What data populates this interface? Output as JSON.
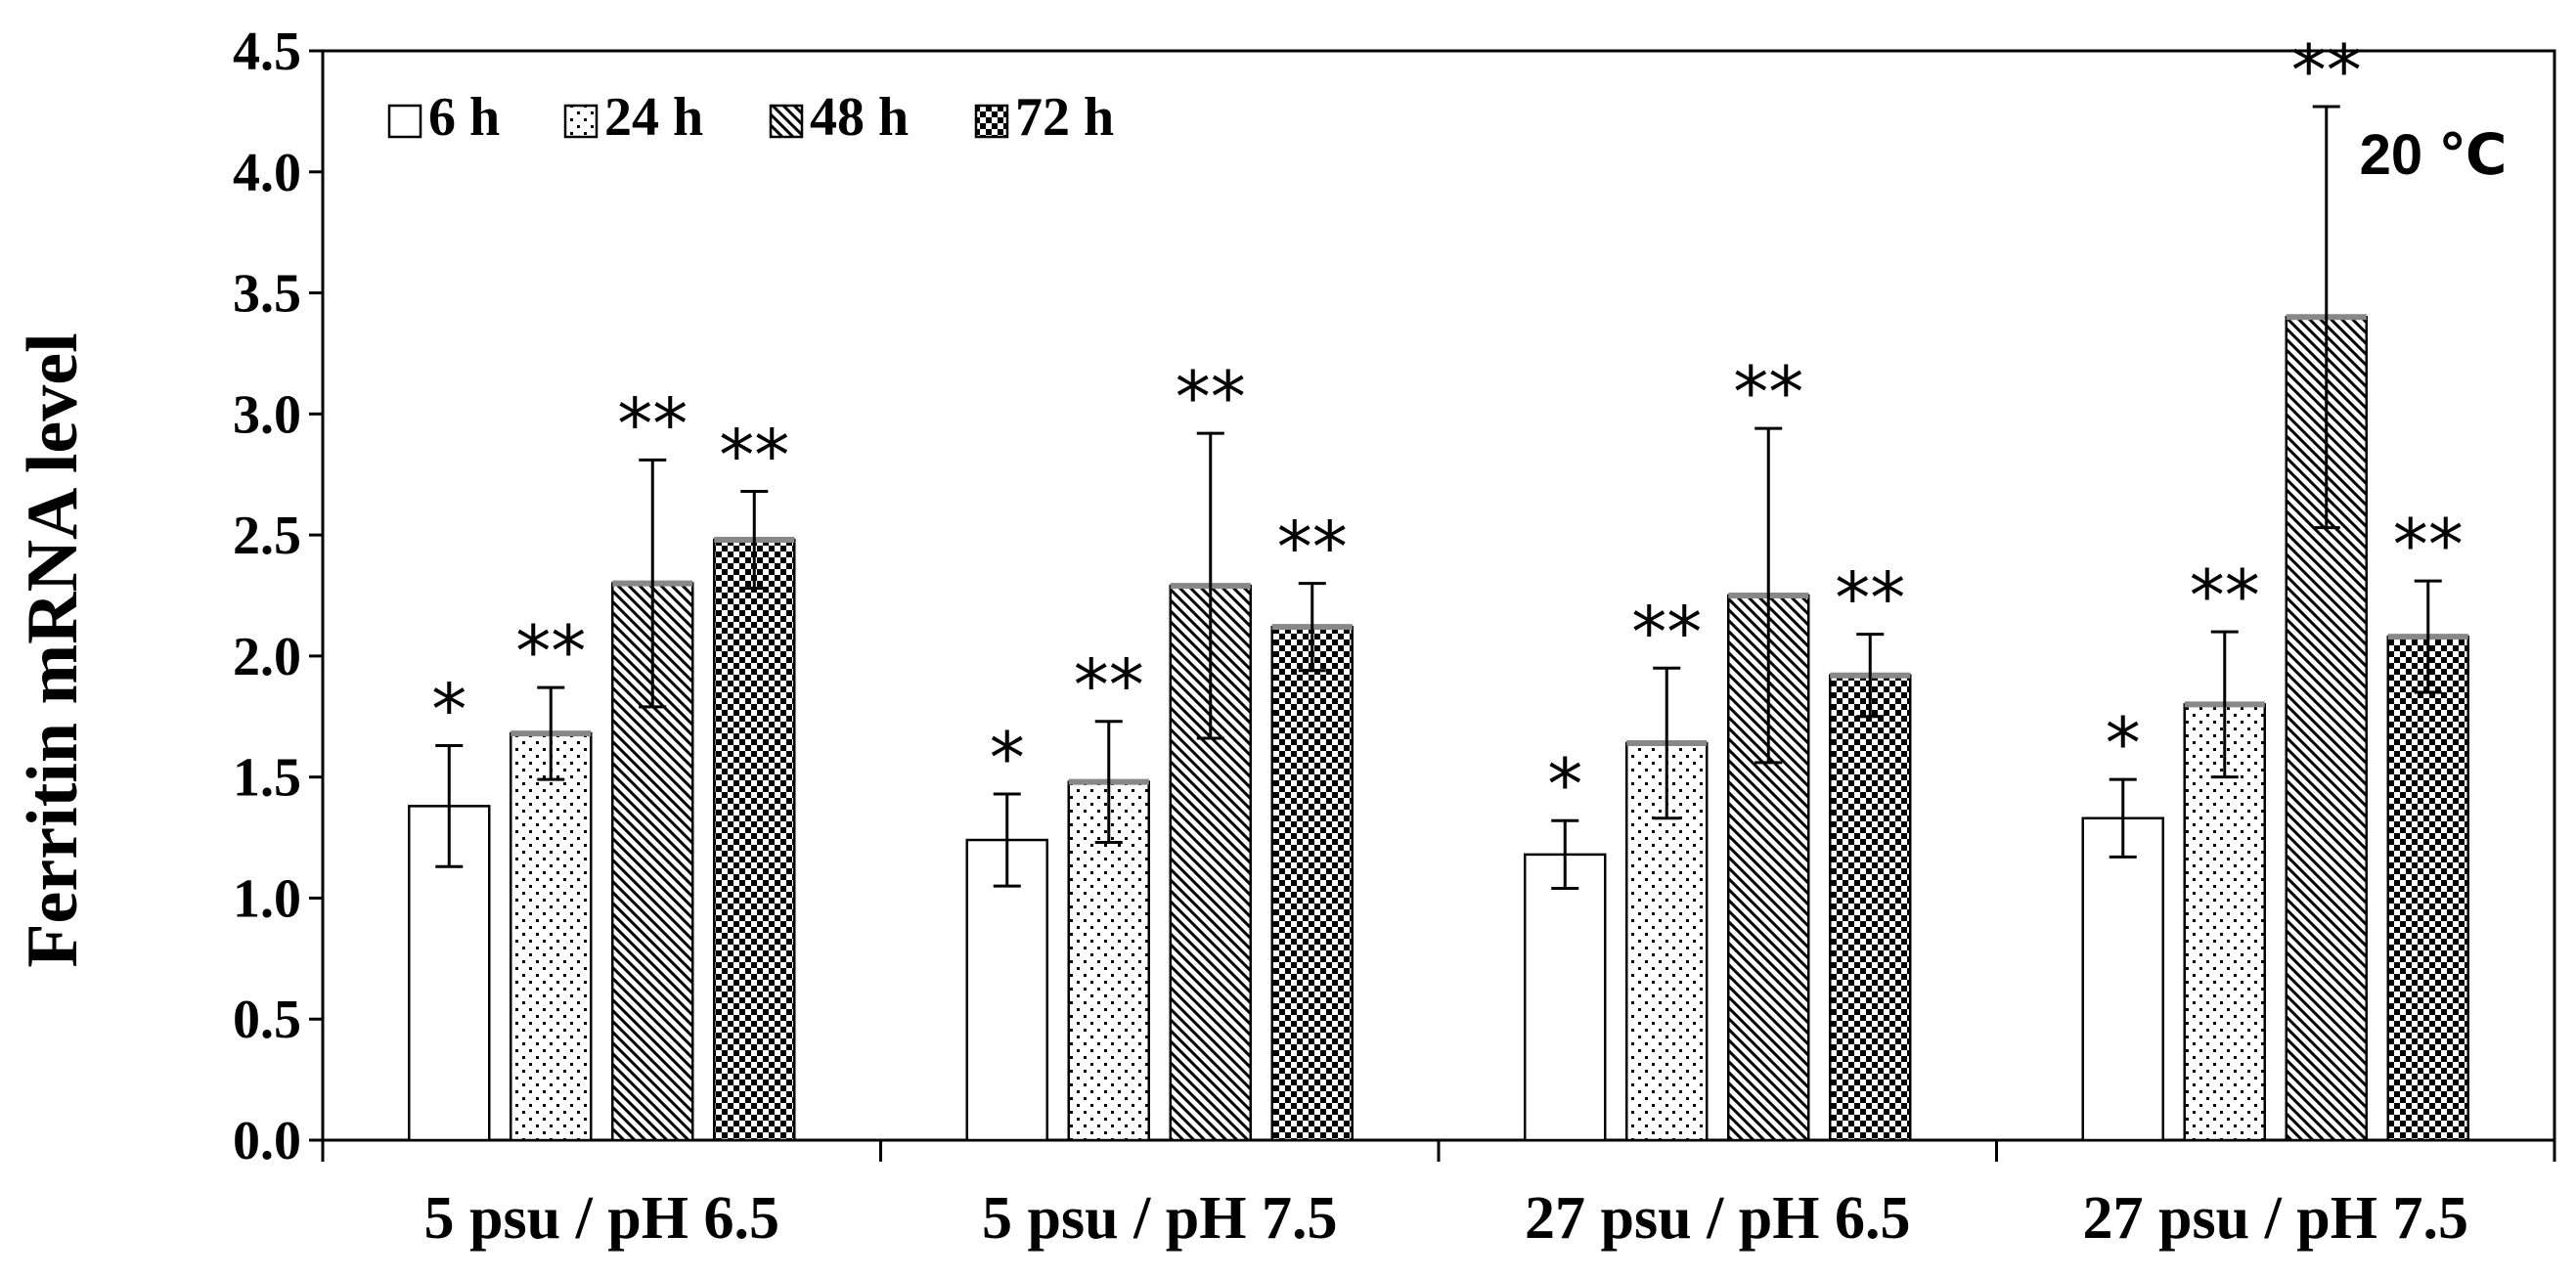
{
  "chart_data": {
    "type": "bar",
    "title": "",
    "xlabel": "",
    "ylabel": "Ferritin  mRNA  level",
    "ylim": [
      0,
      4.5
    ],
    "yticks": [
      "0.0",
      "0.5",
      "1.0",
      "1.5",
      "2.0",
      "2.5",
      "3.0",
      "3.5",
      "4.0",
      "4.5"
    ],
    "annotation": "20 ℃",
    "categories": [
      "5 psu / pH 6.5",
      "5 psu / pH 7.5",
      "27 psu / pH 6.5",
      "27 psu / pH 7.5"
    ],
    "series": [
      {
        "name": "6 h",
        "pattern": "blank",
        "values": [
          1.38,
          1.24,
          1.18,
          1.33
        ],
        "errors": [
          0.25,
          0.19,
          0.14,
          0.16
        ],
        "significance": [
          "*",
          "*",
          "*",
          "*"
        ]
      },
      {
        "name": "24 h",
        "pattern": "dots",
        "values": [
          1.68,
          1.48,
          1.64,
          1.8
        ],
        "errors": [
          0.19,
          0.25,
          0.31,
          0.3
        ],
        "significance": [
          "**",
          "**",
          "**",
          "**"
        ]
      },
      {
        "name": "48 h",
        "pattern": "diagonal",
        "values": [
          2.3,
          2.29,
          2.25,
          3.4
        ],
        "errors": [
          0.51,
          0.63,
          0.69,
          0.87
        ],
        "significance": [
          "**",
          "**",
          "**",
          "**"
        ]
      },
      {
        "name": "72 h",
        "pattern": "checker",
        "values": [
          2.48,
          2.12,
          1.92,
          2.08
        ],
        "errors": [
          0.2,
          0.18,
          0.17,
          0.23
        ],
        "significance": [
          "**",
          "**",
          "**",
          "**"
        ]
      }
    ],
    "legend_position": "top-left",
    "grid": false
  }
}
